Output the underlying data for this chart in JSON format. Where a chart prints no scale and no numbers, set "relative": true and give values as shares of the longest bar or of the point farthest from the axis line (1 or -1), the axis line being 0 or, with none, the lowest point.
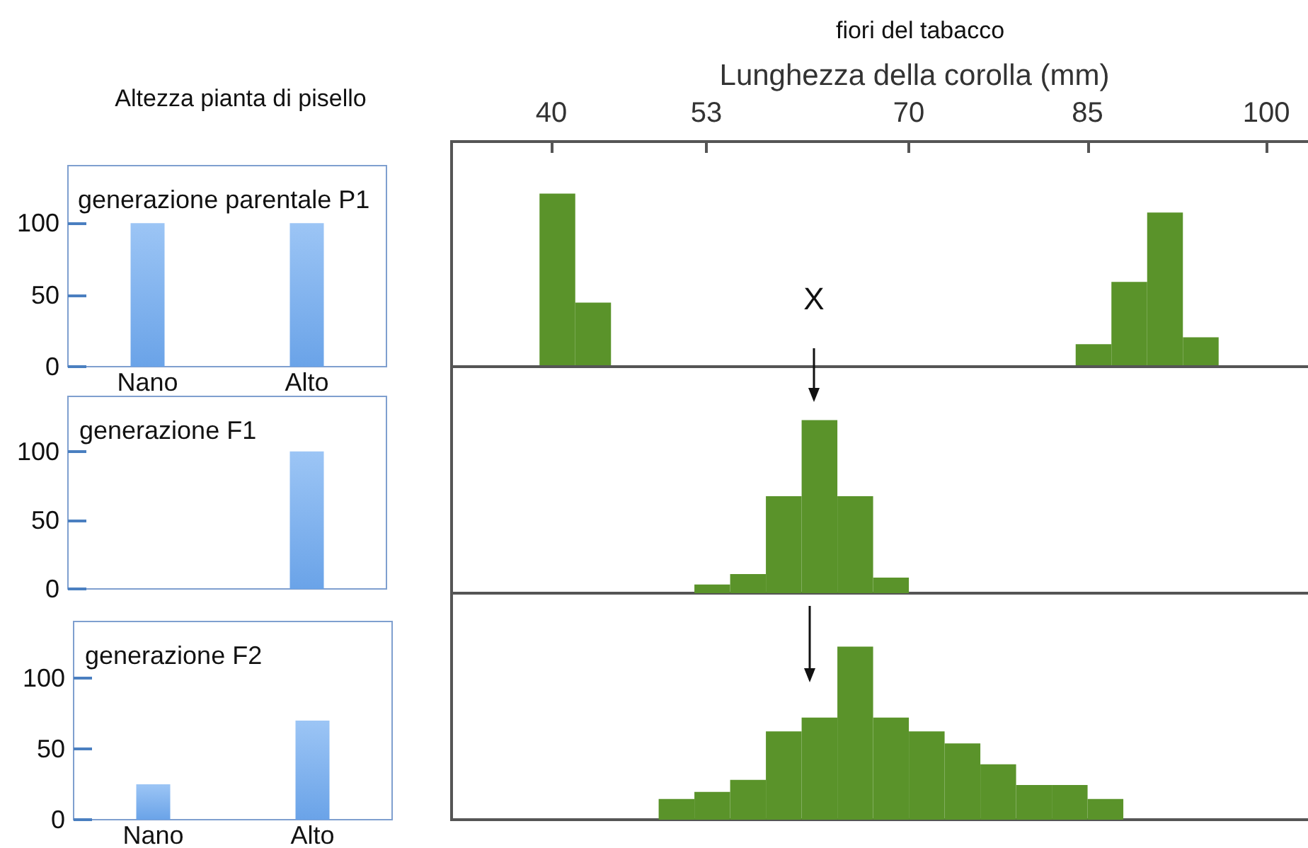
{
  "chart_data": [
    {
      "type": "bar",
      "title": "Altezza pianta di pisello",
      "subtitle": "generazione parentale P1",
      "categories": [
        "Nano",
        "Alto"
      ],
      "values": [
        100,
        100
      ],
      "color": "#6aa3e8",
      "ylim": [
        0,
        140
      ],
      "yticks": [
        0,
        50,
        100
      ]
    },
    {
      "type": "bar",
      "title": "fiori del tabacco",
      "xlabel": "Lunghezza della corolla (mm)",
      "x": [
        40.5,
        43.5,
        85.5,
        88.5,
        91.5,
        94.5
      ],
      "values": [
        1,
        0.37,
        0.13,
        0.49,
        0.89,
        0.17
      ],
      "color": "#5a932a",
      "relative": true,
      "xlim": [
        31.5,
        103.5
      ],
      "xticks": [
        40,
        53,
        70,
        85,
        100
      ],
      "annotations": [
        "X"
      ]
    },
    {
      "type": "bar",
      "title": "generazione F1",
      "categories": [
        null,
        null
      ],
      "values": [
        0,
        100
      ],
      "color": "#6aa3e8",
      "ylim": [
        0,
        140
      ],
      "yticks": [
        0,
        50,
        100
      ]
    },
    {
      "type": "bar",
      "x": [
        53.5,
        56.5,
        59.5,
        62.5,
        65.5,
        68.5
      ],
      "values": [
        0.05,
        0.11,
        0.56,
        1,
        0.56,
        0.09
      ],
      "color": "#5a932a",
      "relative": true,
      "xlim": [
        31.5,
        103.5
      ],
      "xticks": [
        40,
        53,
        70,
        85,
        100
      ],
      "tick_labels": false
    },
    {
      "type": "bar",
      "title": "generazione F2",
      "categories": [
        "Nano",
        "Alto"
      ],
      "values": [
        25,
        70
      ],
      "color": "#6aa3e8",
      "ylim": [
        0,
        140
      ],
      "yticks": [
        0,
        50,
        100
      ]
    },
    {
      "type": "bar",
      "x": [
        50.5,
        53.5,
        56.5,
        59.5,
        62.5,
        65.5,
        68.5,
        71.5,
        74.5,
        77.5,
        80.5,
        83.5,
        86.5
      ],
      "values": [
        0.12,
        0.16,
        0.23,
        0.51,
        0.59,
        1,
        0.59,
        0.51,
        0.44,
        0.32,
        0.2,
        0.2,
        0.12
      ],
      "color": "#5a932a",
      "relative": true,
      "xlim": [
        31.5,
        103.5
      ],
      "xticks": [
        40,
        53,
        70,
        85,
        100
      ],
      "tick_labels": false
    }
  ]
}
